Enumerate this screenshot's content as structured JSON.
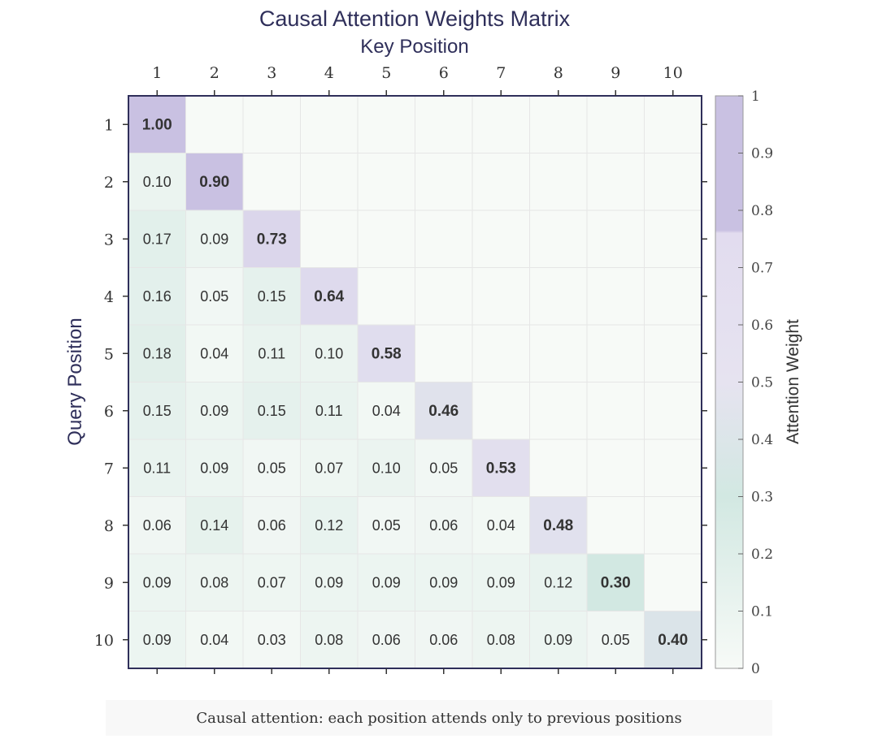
{
  "chart_data": {
    "type": "heatmap",
    "title": "Causal Attention Weights Matrix",
    "xlabel": "Key Position",
    "ylabel": "Query Position",
    "colorbar_label": "Attention Weight",
    "x_categories": [
      "1",
      "2",
      "3",
      "4",
      "5",
      "6",
      "7",
      "8",
      "9",
      "10"
    ],
    "y_categories": [
      "1",
      "2",
      "3",
      "4",
      "5",
      "6",
      "7",
      "8",
      "9",
      "10"
    ],
    "values": [
      [
        1.0,
        null,
        null,
        null,
        null,
        null,
        null,
        null,
        null,
        null
      ],
      [
        0.1,
        0.9,
        null,
        null,
        null,
        null,
        null,
        null,
        null,
        null
      ],
      [
        0.17,
        0.09,
        0.73,
        null,
        null,
        null,
        null,
        null,
        null,
        null
      ],
      [
        0.16,
        0.05,
        0.15,
        0.64,
        null,
        null,
        null,
        null,
        null,
        null
      ],
      [
        0.18,
        0.04,
        0.11,
        0.1,
        0.58,
        null,
        null,
        null,
        null,
        null
      ],
      [
        0.15,
        0.09,
        0.15,
        0.11,
        0.04,
        0.46,
        null,
        null,
        null,
        null
      ],
      [
        0.11,
        0.09,
        0.05,
        0.07,
        0.1,
        0.05,
        0.53,
        null,
        null,
        null
      ],
      [
        0.06,
        0.14,
        0.06,
        0.12,
        0.05,
        0.06,
        0.04,
        0.48,
        null,
        null
      ],
      [
        0.09,
        0.08,
        0.07,
        0.09,
        0.09,
        0.09,
        0.09,
        0.12,
        0.3,
        null
      ],
      [
        0.09,
        0.04,
        0.03,
        0.08,
        0.06,
        0.06,
        0.08,
        0.09,
        0.05,
        0.4
      ]
    ],
    "colorbar_ticks": [
      "0",
      "0.1",
      "0.2",
      "0.3",
      "0.4",
      "0.5",
      "0.6",
      "0.7",
      "0.8",
      "0.9",
      "1"
    ],
    "color_range": [
      0,
      1
    ],
    "colormap": [
      "#f7faf7",
      "#d2e8e2",
      "#e3e0ef",
      "#c9c1e2"
    ],
    "caption": "Causal attention: each position attends only to previous positions"
  }
}
